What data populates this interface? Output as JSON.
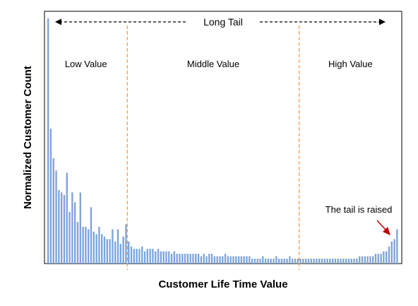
{
  "chart_data": {
    "type": "bar",
    "xlabel": "Customer Life Time Value",
    "ylabel": "Normalized Customer Count",
    "bar_color": "#7fa4d8",
    "divider_color": "#f0a050",
    "annotation_color": "#c00000",
    "ylim": [
      0,
      100
    ],
    "grid": false,
    "legend": "none",
    "x_ticks": "none",
    "y_ticks": "none",
    "range_label": "Long Tail",
    "regions": [
      {
        "name": "Low Value"
      },
      {
        "name": "Middle Value"
      },
      {
        "name": "High Value"
      }
    ],
    "region_boundaries_after_bar": [
      29,
      93
    ],
    "annotation": "The tail is raised",
    "values": [
      100,
      55,
      43,
      38,
      30,
      29,
      28,
      37,
      21,
      29,
      25,
      17,
      20,
      15,
      15,
      14,
      13,
      13,
      12,
      12,
      11,
      11,
      10,
      10,
      10,
      9,
      11,
      8,
      8,
      10,
      9,
      7,
      6,
      6,
      6,
      6,
      5,
      6,
      6,
      6,
      5,
      5,
      5,
      5,
      5,
      5,
      4,
      4,
      4,
      4,
      4,
      4,
      4,
      4,
      4,
      4,
      4,
      3,
      3,
      3,
      4,
      3,
      3,
      3,
      3,
      3,
      3,
      3,
      3,
      3,
      3,
      3,
      3,
      3,
      3,
      3,
      2,
      2,
      2,
      2,
      3,
      2,
      2,
      2,
      2,
      2,
      2,
      2,
      2,
      2,
      2,
      2,
      2,
      2,
      2,
      2,
      2,
      2,
      2,
      2,
      2,
      2,
      2,
      2,
      2,
      2,
      2,
      2,
      2,
      2,
      2,
      2,
      2,
      2,
      2,
      2,
      3,
      3,
      3,
      3,
      3,
      3,
      4,
      4,
      4,
      5,
      5,
      7,
      9,
      10,
      14
    ],
    "spikes": [
      [
        7,
        30
      ],
      [
        9,
        28
      ],
      [
        12,
        29
      ],
      [
        16,
        23
      ],
      [
        19,
        15
      ],
      [
        20,
        12
      ],
      [
        24,
        14
      ],
      [
        26,
        14
      ],
      [
        28,
        11
      ],
      [
        29,
        16
      ],
      [
        33,
        6
      ],
      [
        35,
        7
      ],
      [
        41,
        6
      ],
      [
        44,
        5
      ],
      [
        47,
        5
      ],
      [
        51,
        4
      ],
      [
        55,
        4
      ],
      [
        58,
        4
      ],
      [
        61,
        4
      ],
      [
        66,
        4
      ],
      [
        70,
        3
      ],
      [
        75,
        3
      ],
      [
        80,
        3
      ],
      [
        85,
        3
      ],
      [
        90,
        3
      ],
      [
        95,
        2
      ],
      [
        100,
        2
      ],
      [
        106,
        2
      ]
    ]
  }
}
